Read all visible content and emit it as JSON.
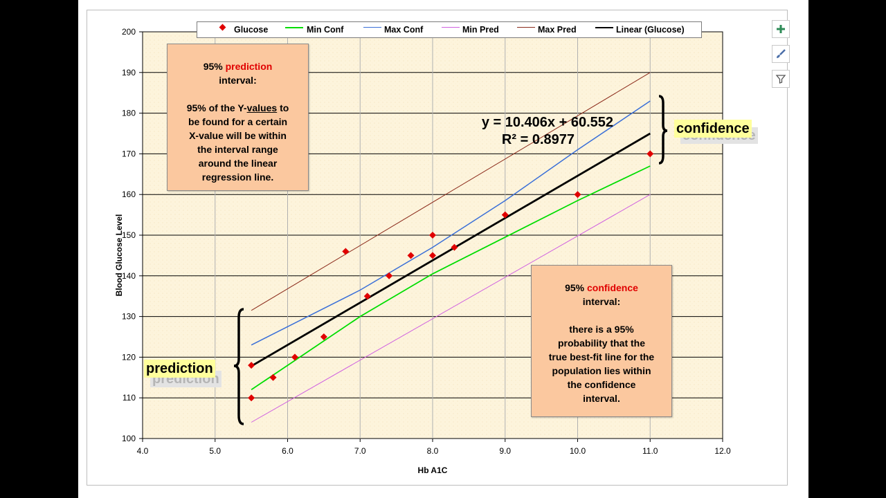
{
  "chart_data": {
    "type": "scatter",
    "title": "",
    "xlabel": "Hb A1C",
    "ylabel": "Blood Glucose Level",
    "xlim": [
      4.0,
      12.0
    ],
    "ylim": [
      100,
      200
    ],
    "x_ticks": [
      "4.0",
      "5.0",
      "6.0",
      "7.0",
      "8.0",
      "9.0",
      "10.0",
      "11.0",
      "12.0"
    ],
    "y_ticks": [
      "100",
      "110",
      "120",
      "130",
      "140",
      "150",
      "160",
      "170",
      "180",
      "190",
      "200"
    ],
    "grid": true,
    "legend_position": "top",
    "legend": [
      "Glucose",
      "Min Conf",
      "Max Conf",
      "Min Pred",
      "Max Pred",
      "Linear (Glucose)"
    ],
    "series": [
      {
        "name": "Glucose",
        "kind": "points",
        "color": "#e00000",
        "x": [
          5.5,
          5.5,
          5.8,
          6.1,
          6.5,
          6.8,
          7.1,
          7.4,
          7.7,
          8.0,
          8.0,
          8.3,
          9.0,
          10.0,
          11.0
        ],
        "y": [
          110,
          118,
          115,
          120,
          125,
          146,
          135,
          140,
          145,
          145,
          150,
          147,
          155,
          160,
          170
        ]
      },
      {
        "name": "Min Conf",
        "kind": "line",
        "color": "#00dd00",
        "x": [
          5.5,
          6.0,
          7.0,
          8.0,
          9.0,
          10.0,
          11.0
        ],
        "y": [
          112,
          118,
          130,
          140.5,
          149.5,
          158.5,
          167
        ]
      },
      {
        "name": "Max Conf",
        "kind": "line",
        "color": "#3a6fd8",
        "x": [
          5.5,
          6.0,
          7.0,
          8.0,
          9.0,
          10.0,
          11.0
        ],
        "y": [
          123,
          127.5,
          136.5,
          147,
          158.5,
          171,
          183
        ]
      },
      {
        "name": "Min Pred",
        "kind": "line",
        "color": "#d060e0",
        "x": [
          5.5,
          11.0
        ],
        "y": [
          104,
          160
        ]
      },
      {
        "name": "Max Pred",
        "kind": "line",
        "color": "#8b2a1a",
        "x": [
          5.5,
          11.0
        ],
        "y": [
          131.5,
          190
        ]
      },
      {
        "name": "Linear (Glucose)",
        "kind": "line",
        "color": "#000000",
        "x": [
          5.5,
          11.0
        ],
        "y": [
          117.8,
          175.0
        ]
      }
    ],
    "annotations": {
      "equation": "y = 10.406x + 60.552",
      "r_squared": "R² = 0.8977"
    }
  },
  "notes": {
    "prediction": {
      "line1_prefix": "95% ",
      "line1_highlight": "prediction",
      "line2": "interval:",
      "body1_prefix": "95% of the Y-",
      "body1_underlined": "values",
      "body1_suffix": " to",
      "body2": "be found for a certain",
      "body3": "X-value will be within",
      "body4": "the interval range",
      "body5": "around the linear",
      "body6": "regression line."
    },
    "confidence": {
      "line1_prefix": "95% ",
      "line1_highlight": "confidence",
      "line2": "interval:",
      "body1": "there is a 95%",
      "body2": "probability that the",
      "body3": "true best-fit line for the",
      "body4": "population lies within",
      "body5": "the confidence",
      "body6": "interval."
    }
  },
  "tags": {
    "confidence": "confidence",
    "prediction": "prediction"
  },
  "side_buttons": [
    "plus-icon",
    "brush-icon",
    "filter-icon"
  ],
  "colors": {
    "plot_background": "#fdf4dc",
    "note_background": "#fbc89f",
    "tag_background": "#ffff9c",
    "highlight": "#e00000"
  }
}
